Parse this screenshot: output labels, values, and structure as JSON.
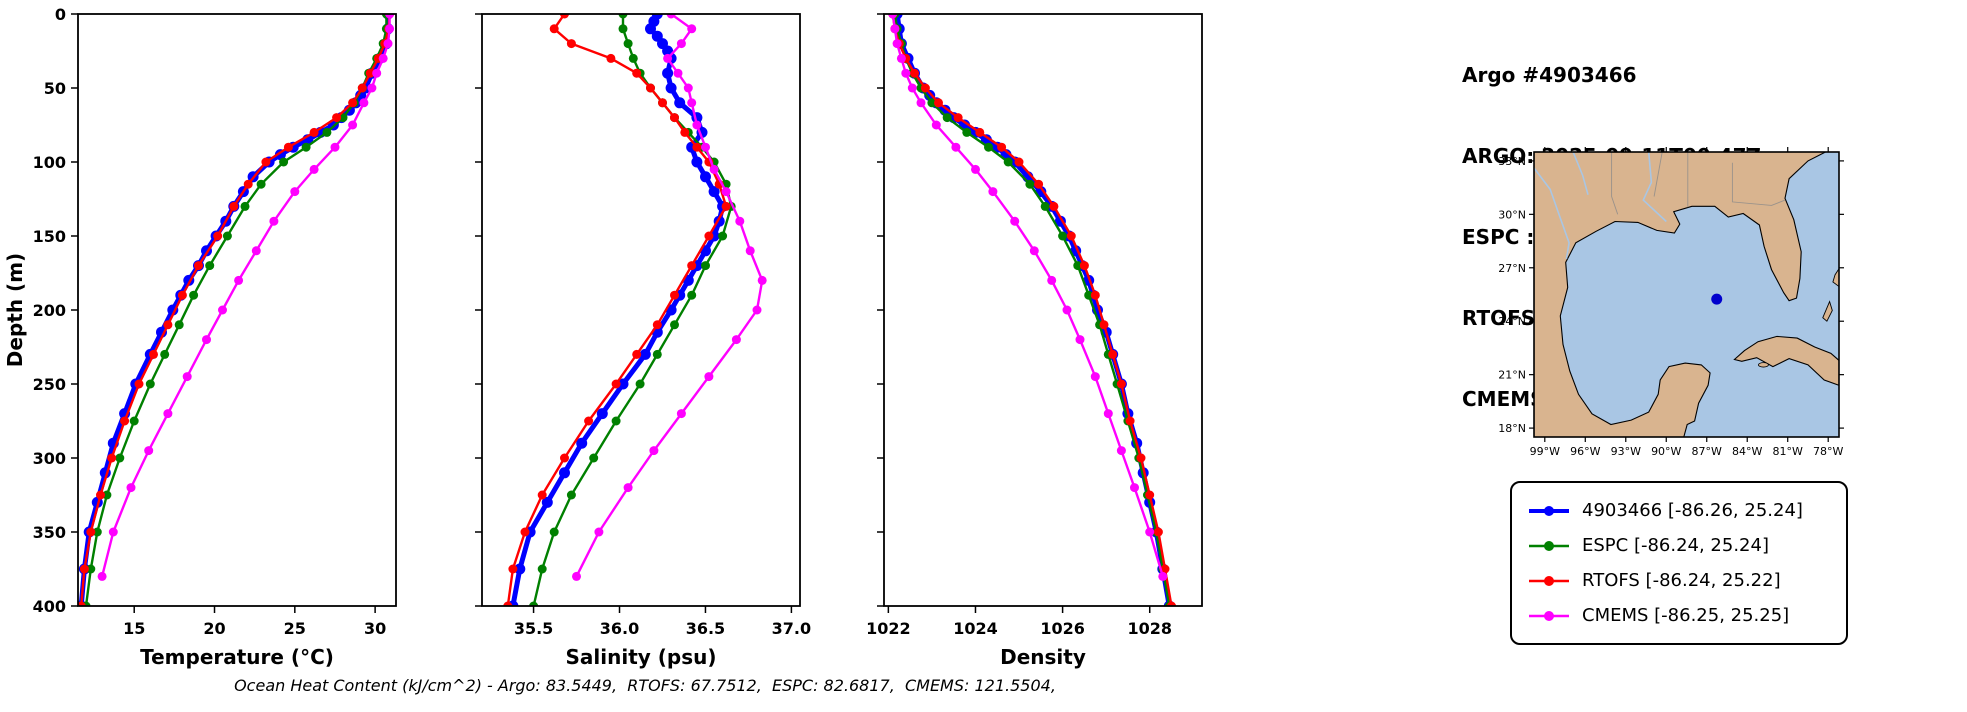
{
  "header": {
    "title": "Argo #4903466",
    "lines": [
      "ARGO: 2025-09-11T00:47Z",
      "ESPC : 2025-09-11T00:00Z",
      "RTOFS: 2025-09-11T00:00Z",
      "CMEMS: 2025-09-11T00:00Z"
    ]
  },
  "footer": "Ocean Heat Content (kJ/cm^2) - Argo: 83.5449,  RTOFS: 67.7512,  ESPC: 82.6817,  CMEMS: 121.5504,",
  "colors": {
    "argo": "#0000ff",
    "espc": "#008000",
    "rtofs": "#ff0000",
    "cmems": "#ff00ff"
  },
  "legend": [
    {
      "label": "4903466 [-86.26, 25.24]",
      "color": "#0000ff",
      "lw": 4
    },
    {
      "label": "ESPC [-86.24, 25.24]",
      "color": "#008000",
      "lw": 2.5
    },
    {
      "label": "RTOFS [-86.24, 25.22]",
      "color": "#ff0000",
      "lw": 2.5
    },
    {
      "label": "CMEMS [-86.25, 25.25]",
      "color": "#ff00ff",
      "lw": 2.5
    }
  ],
  "map": {
    "water_color": "#a9c6e4",
    "land_color": "#d9b48f",
    "coast_color": "#000000",
    "border_color": "#8a8a8a",
    "marker": {
      "lon": -86.26,
      "lat": 25.24,
      "color": "#0000cd"
    },
    "lat_ticks": [
      33,
      30,
      27,
      24,
      21,
      18
    ],
    "lat_tick_labels": [
      "33°N",
      "30°N",
      "27°N",
      "24°N",
      "21°N",
      "18°N"
    ],
    "lon_ticks": [
      -99,
      -96,
      -93,
      -90,
      -87,
      -84,
      -81,
      -78
    ],
    "lon_tick_labels": [
      "99°W",
      "96°W",
      "93°W",
      "90°W",
      "87°W",
      "84°W",
      "81°W",
      "78°W"
    ]
  },
  "chart_data": [
    {
      "type": "line",
      "xlabel": "Temperature (°C)",
      "ylabel": "Depth (m)",
      "xlim": [
        11.5,
        31.3
      ],
      "ylim": [
        400,
        0
      ],
      "xticks": [
        15,
        20,
        25,
        30
      ],
      "xticklabels": [
        "15",
        "20",
        "25",
        "30"
      ],
      "yticks": [
        0,
        50,
        100,
        150,
        200,
        250,
        300,
        350,
        400
      ],
      "yticklabels": [
        "0",
        "50",
        "100",
        "150",
        "200",
        "250",
        "300",
        "350",
        "400"
      ],
      "grid": false,
      "series": [
        {
          "name": "4903466",
          "color": "#0000ff",
          "lw": 5,
          "ms": 5.5,
          "depth": [
            0,
            10,
            20,
            30,
            40,
            50,
            55,
            60,
            65,
            70,
            75,
            80,
            85,
            90,
            95,
            100,
            110,
            120,
            130,
            140,
            150,
            160,
            170,
            180,
            190,
            200,
            215,
            230,
            250,
            270,
            290,
            310,
            330,
            350,
            375,
            400
          ],
          "values": [
            30.8,
            30.8,
            30.7,
            30.3,
            29.8,
            29.4,
            29.1,
            28.8,
            28.4,
            27.9,
            27.4,
            26.6,
            25.8,
            24.9,
            24.1,
            23.4,
            22.4,
            21.8,
            21.2,
            20.7,
            20.1,
            19.5,
            19.0,
            18.4,
            17.9,
            17.4,
            16.7,
            16.0,
            15.1,
            14.4,
            13.7,
            13.2,
            12.7,
            12.2,
            11.9,
            11.7
          ]
        },
        {
          "name": "ESPC",
          "color": "#008000",
          "lw": 2.4,
          "ms": 4.5,
          "depth": [
            0,
            10,
            20,
            30,
            40,
            50,
            60,
            70,
            80,
            90,
            100,
            115,
            130,
            150,
            170,
            190,
            210,
            230,
            250,
            275,
            300,
            325,
            350,
            375,
            400
          ],
          "values": [
            30.7,
            30.7,
            30.5,
            30.1,
            29.6,
            29.2,
            28.7,
            28.0,
            27.0,
            25.7,
            24.3,
            22.9,
            21.9,
            20.8,
            19.7,
            18.7,
            17.8,
            16.9,
            16.0,
            15.0,
            14.1,
            13.3,
            12.7,
            12.3,
            12.0
          ]
        },
        {
          "name": "RTOFS",
          "color": "#ff0000",
          "lw": 2.4,
          "ms": 4.5,
          "depth": [
            0,
            10,
            20,
            30,
            40,
            50,
            60,
            70,
            80,
            90,
            100,
            115,
            130,
            150,
            170,
            190,
            210,
            230,
            250,
            275,
            300,
            325,
            350,
            375,
            400
          ],
          "values": [
            30.9,
            30.85,
            30.6,
            30.2,
            29.7,
            29.2,
            28.6,
            27.6,
            26.2,
            24.6,
            23.2,
            22.1,
            21.2,
            20.2,
            19.0,
            18.0,
            17.1,
            16.2,
            15.3,
            14.4,
            13.6,
            12.9,
            12.3,
            11.9,
            11.7
          ]
        },
        {
          "name": "CMEMS",
          "color": "#ff00ff",
          "lw": 2.4,
          "ms": 4.5,
          "depth": [
            0,
            10,
            20,
            30,
            40,
            50,
            60,
            75,
            90,
            105,
            120,
            140,
            160,
            180,
            200,
            220,
            245,
            270,
            295,
            320,
            350,
            380
          ],
          "values": [
            30.9,
            30.9,
            30.8,
            30.5,
            30.1,
            29.8,
            29.3,
            28.6,
            27.5,
            26.2,
            25.0,
            23.7,
            22.6,
            21.5,
            20.5,
            19.5,
            18.3,
            17.1,
            15.9,
            14.8,
            13.7,
            13.0
          ]
        }
      ]
    },
    {
      "type": "line",
      "xlabel": "Salinity (psu)",
      "ylabel": "Depth (m)",
      "xlim": [
        35.2,
        37.05
      ],
      "ylim": [
        400,
        0
      ],
      "xticks": [
        35.5,
        36.0,
        36.5,
        37.0
      ],
      "xticklabels": [
        "35.5",
        "36.0",
        "36.5",
        "37.0"
      ],
      "yticks": [
        0,
        50,
        100,
        150,
        200,
        250,
        300,
        350,
        400
      ],
      "yticklabels": [
        "0",
        "50",
        "100",
        "150",
        "200",
        "250",
        "300",
        "350",
        "400"
      ],
      "grid": false,
      "series": [
        {
          "name": "4903466",
          "color": "#0000ff",
          "lw": 5,
          "ms": 5.5,
          "depth": [
            0,
            5,
            10,
            15,
            20,
            25,
            30,
            40,
            50,
            60,
            70,
            80,
            90,
            100,
            110,
            120,
            130,
            140,
            150,
            160,
            170,
            180,
            190,
            200,
            215,
            230,
            250,
            270,
            290,
            310,
            330,
            350,
            375,
            400
          ],
          "values": [
            36.22,
            36.2,
            36.18,
            36.22,
            36.25,
            36.28,
            36.3,
            36.28,
            36.3,
            36.35,
            36.45,
            36.48,
            36.42,
            36.45,
            36.5,
            36.55,
            36.6,
            36.58,
            36.55,
            36.5,
            36.45,
            36.4,
            36.35,
            36.3,
            36.22,
            36.15,
            36.02,
            35.9,
            35.78,
            35.68,
            35.58,
            35.48,
            35.42,
            35.38
          ]
        },
        {
          "name": "ESPC",
          "color": "#008000",
          "lw": 2.4,
          "ms": 4.5,
          "depth": [
            0,
            10,
            20,
            30,
            40,
            50,
            60,
            70,
            80,
            90,
            100,
            115,
            130,
            150,
            170,
            190,
            210,
            230,
            250,
            275,
            300,
            325,
            350,
            375,
            400
          ],
          "values": [
            36.02,
            36.02,
            36.05,
            36.08,
            36.12,
            36.18,
            36.25,
            36.32,
            36.4,
            36.48,
            36.55,
            36.62,
            36.65,
            36.6,
            36.5,
            36.42,
            36.32,
            36.22,
            36.12,
            35.98,
            35.85,
            35.72,
            35.62,
            35.55,
            35.5
          ]
        },
        {
          "name": "RTOFS",
          "color": "#ff0000",
          "lw": 2.4,
          "ms": 4.5,
          "depth": [
            0,
            10,
            20,
            30,
            40,
            50,
            60,
            70,
            80,
            90,
            100,
            115,
            130,
            150,
            170,
            190,
            210,
            230,
            250,
            275,
            300,
            325,
            350,
            375,
            400
          ],
          "values": [
            35.68,
            35.62,
            35.72,
            35.95,
            36.1,
            36.18,
            36.25,
            36.32,
            36.38,
            36.45,
            36.52,
            36.58,
            36.62,
            36.52,
            36.42,
            36.32,
            36.22,
            36.1,
            35.98,
            35.82,
            35.68,
            35.55,
            35.45,
            35.38,
            35.35
          ]
        },
        {
          "name": "CMEMS",
          "color": "#ff00ff",
          "lw": 2.4,
          "ms": 4.5,
          "depth": [
            0,
            10,
            20,
            30,
            40,
            50,
            60,
            75,
            90,
            105,
            120,
            140,
            160,
            180,
            200,
            220,
            245,
            270,
            295,
            320,
            350,
            380
          ],
          "values": [
            36.3,
            36.42,
            36.36,
            36.28,
            36.34,
            36.4,
            36.42,
            36.45,
            36.5,
            36.55,
            36.62,
            36.7,
            36.76,
            36.83,
            36.8,
            36.68,
            36.52,
            36.36,
            36.2,
            36.05,
            35.88,
            35.75
          ]
        }
      ]
    },
    {
      "type": "line",
      "xlabel": "Density",
      "ylabel": "Depth (m)",
      "xlim": [
        1021.9,
        1029.2
      ],
      "ylim": [
        400,
        0
      ],
      "xticks": [
        1022,
        1024,
        1026,
        1028
      ],
      "xticklabels": [
        "1022",
        "1024",
        "1026",
        "1028"
      ],
      "yticks": [
        0,
        50,
        100,
        150,
        200,
        250,
        300,
        350,
        400
      ],
      "yticklabels": [
        "0",
        "50",
        "100",
        "150",
        "200",
        "250",
        "300",
        "350",
        "400"
      ],
      "grid": false,
      "series": [
        {
          "name": "4903466",
          "color": "#0000ff",
          "lw": 5,
          "ms": 5.5,
          "depth": [
            0,
            10,
            20,
            30,
            40,
            50,
            55,
            60,
            65,
            70,
            75,
            80,
            85,
            90,
            95,
            100,
            110,
            120,
            130,
            140,
            150,
            160,
            170,
            180,
            190,
            200,
            215,
            230,
            250,
            270,
            290,
            310,
            330,
            350,
            375,
            400
          ],
          "values": [
            1022.2,
            1022.25,
            1022.3,
            1022.45,
            1022.6,
            1022.8,
            1022.95,
            1023.1,
            1023.3,
            1023.5,
            1023.75,
            1024.0,
            1024.25,
            1024.5,
            1024.7,
            1024.9,
            1025.2,
            1025.5,
            1025.75,
            1025.95,
            1026.15,
            1026.3,
            1026.45,
            1026.6,
            1026.7,
            1026.8,
            1027.0,
            1027.15,
            1027.35,
            1027.5,
            1027.7,
            1027.85,
            1028.0,
            1028.15,
            1028.3,
            1028.45
          ]
        },
        {
          "name": "ESPC",
          "color": "#008000",
          "lw": 2.4,
          "ms": 4.5,
          "depth": [
            0,
            10,
            20,
            30,
            40,
            50,
            60,
            70,
            80,
            90,
            100,
            115,
            130,
            150,
            170,
            190,
            210,
            230,
            250,
            275,
            300,
            325,
            350,
            375,
            400
          ],
          "values": [
            1022.15,
            1022.2,
            1022.3,
            1022.4,
            1022.55,
            1022.75,
            1023.0,
            1023.35,
            1023.8,
            1024.3,
            1024.75,
            1025.25,
            1025.6,
            1026.0,
            1026.35,
            1026.6,
            1026.85,
            1027.05,
            1027.25,
            1027.5,
            1027.75,
            1027.95,
            1028.15,
            1028.3,
            1028.45
          ]
        },
        {
          "name": "RTOFS",
          "color": "#ff0000",
          "lw": 2.4,
          "ms": 4.5,
          "depth": [
            0,
            10,
            20,
            30,
            40,
            50,
            60,
            70,
            80,
            90,
            100,
            115,
            130,
            150,
            170,
            190,
            210,
            230,
            250,
            275,
            300,
            325,
            350,
            375,
            400
          ],
          "values": [
            1022.1,
            1022.15,
            1022.25,
            1022.4,
            1022.6,
            1022.85,
            1023.15,
            1023.6,
            1024.1,
            1024.6,
            1025.0,
            1025.45,
            1025.8,
            1026.2,
            1026.5,
            1026.75,
            1026.95,
            1027.15,
            1027.35,
            1027.55,
            1027.8,
            1028.0,
            1028.2,
            1028.35,
            1028.5
          ]
        },
        {
          "name": "CMEMS",
          "color": "#ff00ff",
          "lw": 2.4,
          "ms": 4.5,
          "depth": [
            0,
            10,
            20,
            30,
            40,
            50,
            60,
            75,
            90,
            105,
            120,
            140,
            160,
            180,
            200,
            220,
            245,
            270,
            295,
            320,
            350,
            380
          ],
          "values": [
            1022.1,
            1022.15,
            1022.2,
            1022.3,
            1022.4,
            1022.55,
            1022.75,
            1023.1,
            1023.55,
            1024.0,
            1024.4,
            1024.9,
            1025.35,
            1025.75,
            1026.1,
            1026.4,
            1026.75,
            1027.05,
            1027.35,
            1027.65,
            1028.0,
            1028.3
          ]
        }
      ]
    }
  ]
}
